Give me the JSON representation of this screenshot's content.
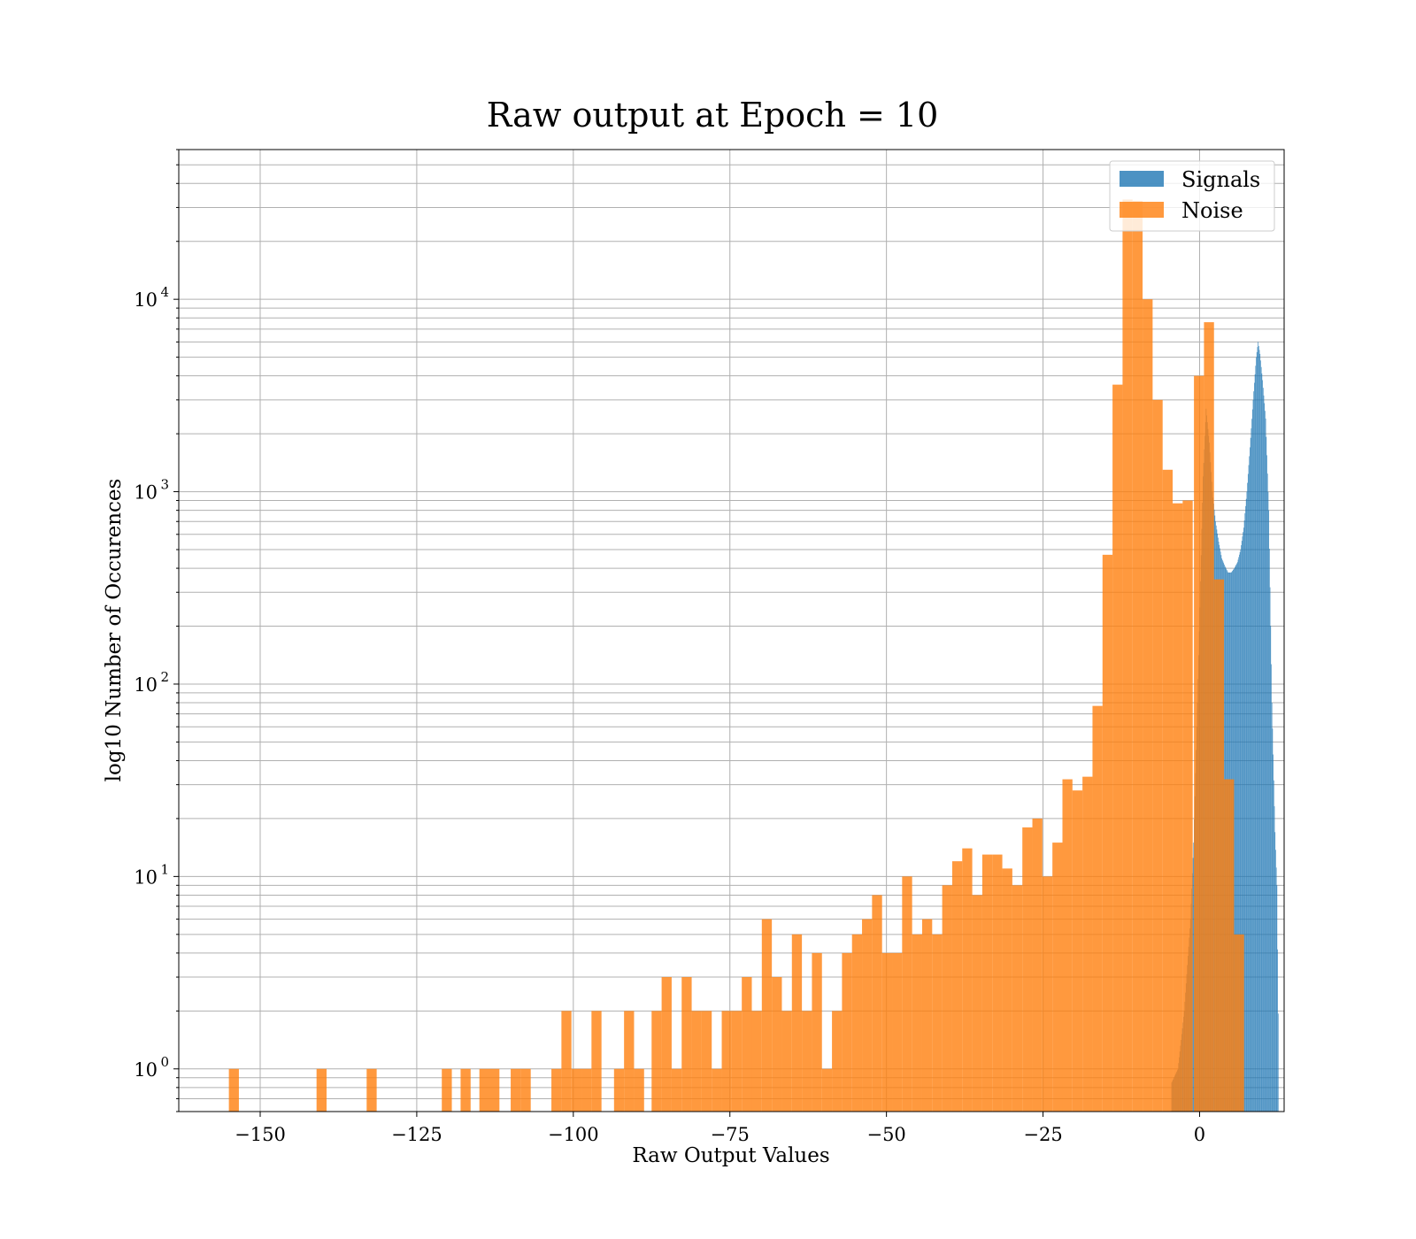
{
  "chart_data": {
    "type": "histogram",
    "title": "Raw output at Epoch = 10",
    "xlabel": "Raw Output Values",
    "ylabel": "log10 Number of Occurences",
    "xlim": [
      -163,
      13.5
    ],
    "ylim": [
      0.6,
      60000
    ],
    "yscale": "log",
    "grid": true,
    "grid_minor_y": true,
    "legend_position": "top-right",
    "x_ticks": [
      {
        "value": -150,
        "label": "−150"
      },
      {
        "value": -125,
        "label": "−125"
      },
      {
        "value": -100,
        "label": "−100"
      },
      {
        "value": -75,
        "label": "−75"
      },
      {
        "value": -50,
        "label": "−50"
      },
      {
        "value": -25,
        "label": "−25"
      },
      {
        "value": 0,
        "label": "0"
      }
    ],
    "y_ticks": [
      {
        "value": 1,
        "base": "10",
        "exp": "0"
      },
      {
        "value": 10,
        "base": "10",
        "exp": "1"
      },
      {
        "value": 100,
        "base": "10",
        "exp": "2"
      },
      {
        "value": 1000,
        "base": "10",
        "exp": "3"
      },
      {
        "value": 10000,
        "base": "10",
        "exp": "4"
      }
    ],
    "series": [
      {
        "name": "Signals",
        "color": "#1f77b4",
        "opacity": 0.8,
        "bin_width": 0.1,
        "curve": [
          [
            -4.5,
            0.85
          ],
          [
            -3.5,
            1
          ],
          [
            -2.5,
            2
          ],
          [
            -1.5,
            6
          ],
          [
            -1.0,
            15
          ],
          [
            -0.5,
            60
          ],
          [
            0,
            250
          ],
          [
            0.5,
            1200
          ],
          [
            1.0,
            2700
          ],
          [
            1.5,
            1800
          ],
          [
            2.0,
            1000
          ],
          [
            2.5,
            700
          ],
          [
            3.0,
            550
          ],
          [
            3.5,
            450
          ],
          [
            4.0,
            410
          ],
          [
            4.5,
            380
          ],
          [
            5.0,
            380
          ],
          [
            5.5,
            400
          ],
          [
            6.0,
            430
          ],
          [
            6.5,
            500
          ],
          [
            7.0,
            650
          ],
          [
            7.5,
            1000
          ],
          [
            8.0,
            1700
          ],
          [
            8.5,
            3000
          ],
          [
            9.0,
            5000
          ],
          [
            9.3,
            6000
          ],
          [
            9.6,
            5200
          ],
          [
            10.0,
            3800
          ],
          [
            10.5,
            2400
          ],
          [
            11.0,
            800
          ],
          [
            11.5,
            80
          ],
          [
            12.0,
            17
          ],
          [
            12.3,
            9
          ],
          [
            12.6,
            0.9
          ]
        ]
      },
      {
        "name": "Noise",
        "color": "#ff7f0e",
        "opacity": 0.8,
        "bin_width": 1.6,
        "bins": [
          [
            -155,
            1
          ],
          [
            -141,
            1
          ],
          [
            -133,
            1
          ],
          [
            -121,
            1
          ],
          [
            -118,
            1
          ],
          [
            -115,
            1
          ],
          [
            -113.4,
            1
          ],
          [
            -110,
            1
          ],
          [
            -108.4,
            1
          ],
          [
            -103.5,
            1
          ],
          [
            -101.9,
            2
          ],
          [
            -100.3,
            1
          ],
          [
            -98.7,
            1
          ],
          [
            -97.1,
            2
          ],
          [
            -93.5,
            1
          ],
          [
            -91.9,
            2
          ],
          [
            -90.3,
            1
          ],
          [
            -87.5,
            2
          ],
          [
            -85.9,
            3
          ],
          [
            -84.3,
            1
          ],
          [
            -82.7,
            3
          ],
          [
            -81.1,
            2
          ],
          [
            -79.5,
            2
          ],
          [
            -77.9,
            1
          ],
          [
            -76.3,
            2
          ],
          [
            -74.7,
            2
          ],
          [
            -73.1,
            3
          ],
          [
            -71.5,
            2
          ],
          [
            -69.9,
            6
          ],
          [
            -68.3,
            3
          ],
          [
            -66.7,
            2
          ],
          [
            -65.1,
            5
          ],
          [
            -63.5,
            2
          ],
          [
            -61.9,
            4
          ],
          [
            -60.3,
            1
          ],
          [
            -58.7,
            2
          ],
          [
            -57.1,
            4
          ],
          [
            -55.5,
            5
          ],
          [
            -53.9,
            6
          ],
          [
            -52.3,
            8
          ],
          [
            -50.7,
            4
          ],
          [
            -49.1,
            4
          ],
          [
            -47.5,
            10
          ],
          [
            -45.9,
            5
          ],
          [
            -44.3,
            6
          ],
          [
            -42.7,
            5
          ],
          [
            -41.1,
            9
          ],
          [
            -39.5,
            12
          ],
          [
            -37.9,
            14
          ],
          [
            -36.3,
            8
          ],
          [
            -34.7,
            13
          ],
          [
            -33.1,
            13
          ],
          [
            -31.5,
            11
          ],
          [
            -29.9,
            9
          ],
          [
            -28.3,
            18
          ],
          [
            -26.7,
            20
          ],
          [
            -25.1,
            10
          ],
          [
            -23.5,
            15
          ],
          [
            -21.9,
            32
          ],
          [
            -20.3,
            28
          ],
          [
            -18.7,
            33
          ],
          [
            -17.1,
            77
          ],
          [
            -15.5,
            470
          ],
          [
            -13.9,
            3600
          ],
          [
            -12.3,
            33000
          ],
          [
            -10.7,
            32500
          ],
          [
            -9.1,
            10000
          ],
          [
            -7.5,
            3000
          ],
          [
            -5.9,
            1300
          ],
          [
            -4.3,
            870
          ],
          [
            -2.7,
            900
          ],
          [
            -0.9,
            4000
          ],
          [
            0.7,
            7600
          ],
          [
            2.3,
            350
          ],
          [
            3.9,
            32
          ],
          [
            5.5,
            5
          ],
          [
            7.1,
            0.6
          ]
        ]
      }
    ]
  }
}
